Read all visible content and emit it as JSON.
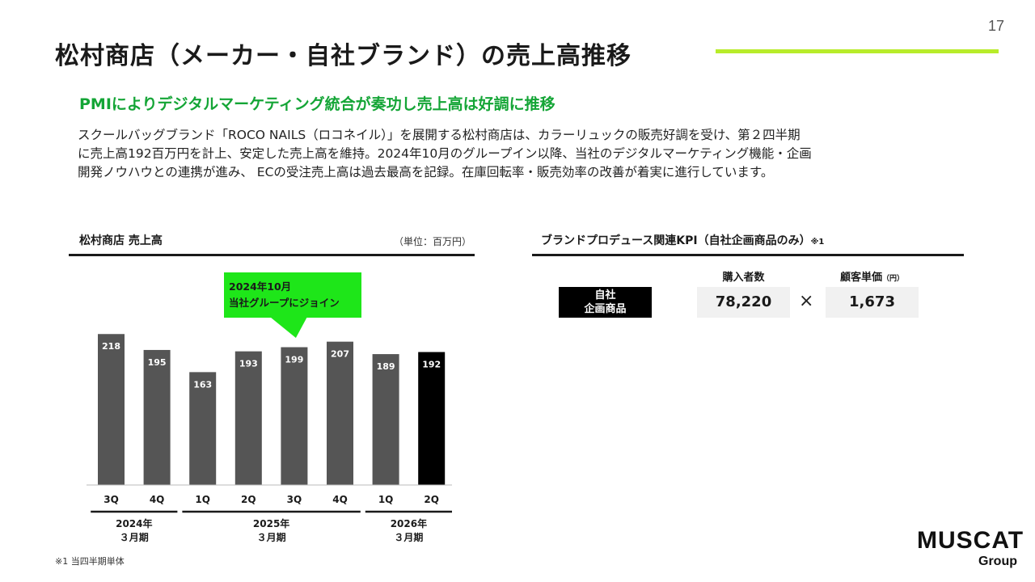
{
  "page": {
    "number": "17",
    "title": "松村商店（メーカー・自社ブランド）の売上高推移",
    "subheading": "PMIによりデジタルマーケティング統合が奏功し売上高は好調に推移",
    "body_lines": [
      "スクールバッグブランド「ROCO NAILS（ロコネイル）」を展開する松村商店は、カラーリュックの販売好調を受け、第２四半期",
      "に売上高192百万円を計上、安定した売上高を維持。2024年10月のグループイン以降、当社のデジタルマーケティング機能・企画",
      "開発ノウハウとの連携が進み、 ECの受注売上高は過去最高を記録。在庫回転率・販売効率の改善が着実に進行しています。"
    ],
    "footnote": "※1 当四半期単体"
  },
  "logo": {
    "main": "MUSCAT",
    "sub": "Group"
  },
  "chart_data": {
    "type": "bar",
    "title": "松村商店 売上高",
    "unit": "（単位：百万円）",
    "categories": [
      "3Q",
      "4Q",
      "1Q",
      "2Q",
      "3Q",
      "4Q",
      "1Q",
      "2Q"
    ],
    "values": [
      218,
      195,
      163,
      193,
      199,
      207,
      189,
      192
    ],
    "bar_colors": [
      "#555555",
      "#555555",
      "#555555",
      "#555555",
      "#555555",
      "#555555",
      "#555555",
      "#000000"
    ],
    "year_groups": [
      {
        "line1": "2024年",
        "line2": "３月期",
        "start": 0,
        "end": 1
      },
      {
        "line1": "2025年",
        "line2": "３月期",
        "start": 2,
        "end": 5
      },
      {
        "line1": "2026年",
        "line2": "３月期",
        "start": 6,
        "end": 7
      }
    ],
    "annotation": {
      "line1": "2024年10月",
      "line2": "当社グループにジョイン",
      "target_index": 4
    },
    "ylim": [
      0,
      240
    ],
    "grid": false,
    "legend": "none"
  },
  "kpi": {
    "title": "ブランドプロデュース関連KPI（自社企画商品のみ）",
    "title_note": "※1",
    "row_label_line1": "自社",
    "row_label_line2": "企画商品",
    "col1_header": "購入者数",
    "col2_header": "顧客単価",
    "col2_unit": "（円）",
    "value1": "78,220",
    "value2": "1,673",
    "operator": "×"
  }
}
